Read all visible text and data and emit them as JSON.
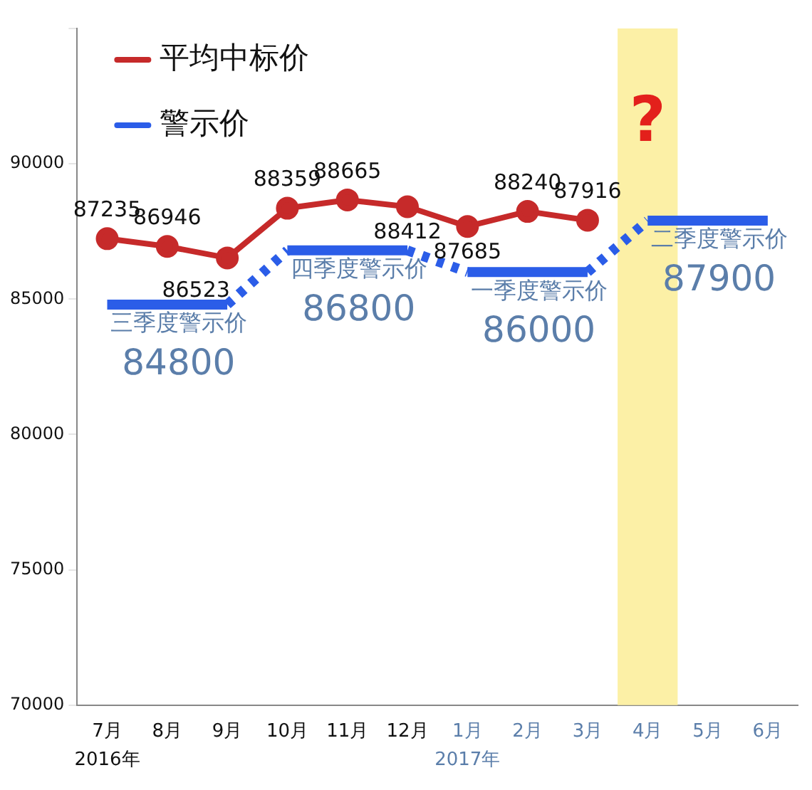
{
  "chart_data": {
    "type": "line",
    "categories": [
      "7月",
      "8月",
      "9月",
      "10月",
      "11月",
      "12月",
      "1月",
      "2月",
      "3月",
      "4月",
      "5月",
      "6月"
    ],
    "ylim": [
      70000,
      95000
    ],
    "yticks": [
      70000,
      75000,
      80000,
      85000,
      90000,
      {
        "value": 95000,
        "label": null
      }
    ],
    "grid": false,
    "legend": "top left",
    "marker": "circle",
    "series": [
      {
        "name": "平均中标价",
        "color": "#c62a2a",
        "values": [
          87235,
          86946,
          86523,
          88359,
          88665,
          88412,
          87685,
          88240,
          87916,
          null,
          null,
          null
        ],
        "value_labels": [
          "87235",
          "86946",
          "86523",
          "88359",
          "88665",
          "88412",
          "87685",
          "88240",
          "87916",
          null,
          null,
          null
        ]
      },
      {
        "name": "警示价",
        "color": "#2b5de8",
        "marker": "none",
        "values": [
          84800,
          84800,
          84800,
          86800,
          86800,
          86800,
          86000,
          86000,
          86000,
          87900,
          87900,
          87900
        ],
        "value_labels": [
          null,
          "84800",
          null,
          null,
          "86800",
          null,
          null,
          "86000",
          null,
          null,
          "87900",
          null
        ]
      }
    ],
    "bands": [
      {
        "axis": "x",
        "from": "4月",
        "to": "4月",
        "color": "#fcf0a6"
      }
    ],
    "annotations": [
      {
        "text": "三季度警示价",
        "x": "8月",
        "y": 84800
      },
      {
        "text": "四季度警示价",
        "x": "11月",
        "y": 86800
      },
      {
        "text": "一季度警示价",
        "x": "2月",
        "y": 86000
      },
      {
        "text": "二季度警示价",
        "x": "5月",
        "y": 87900
      },
      "?",
      "2016年",
      "2017年"
    ]
  }
}
